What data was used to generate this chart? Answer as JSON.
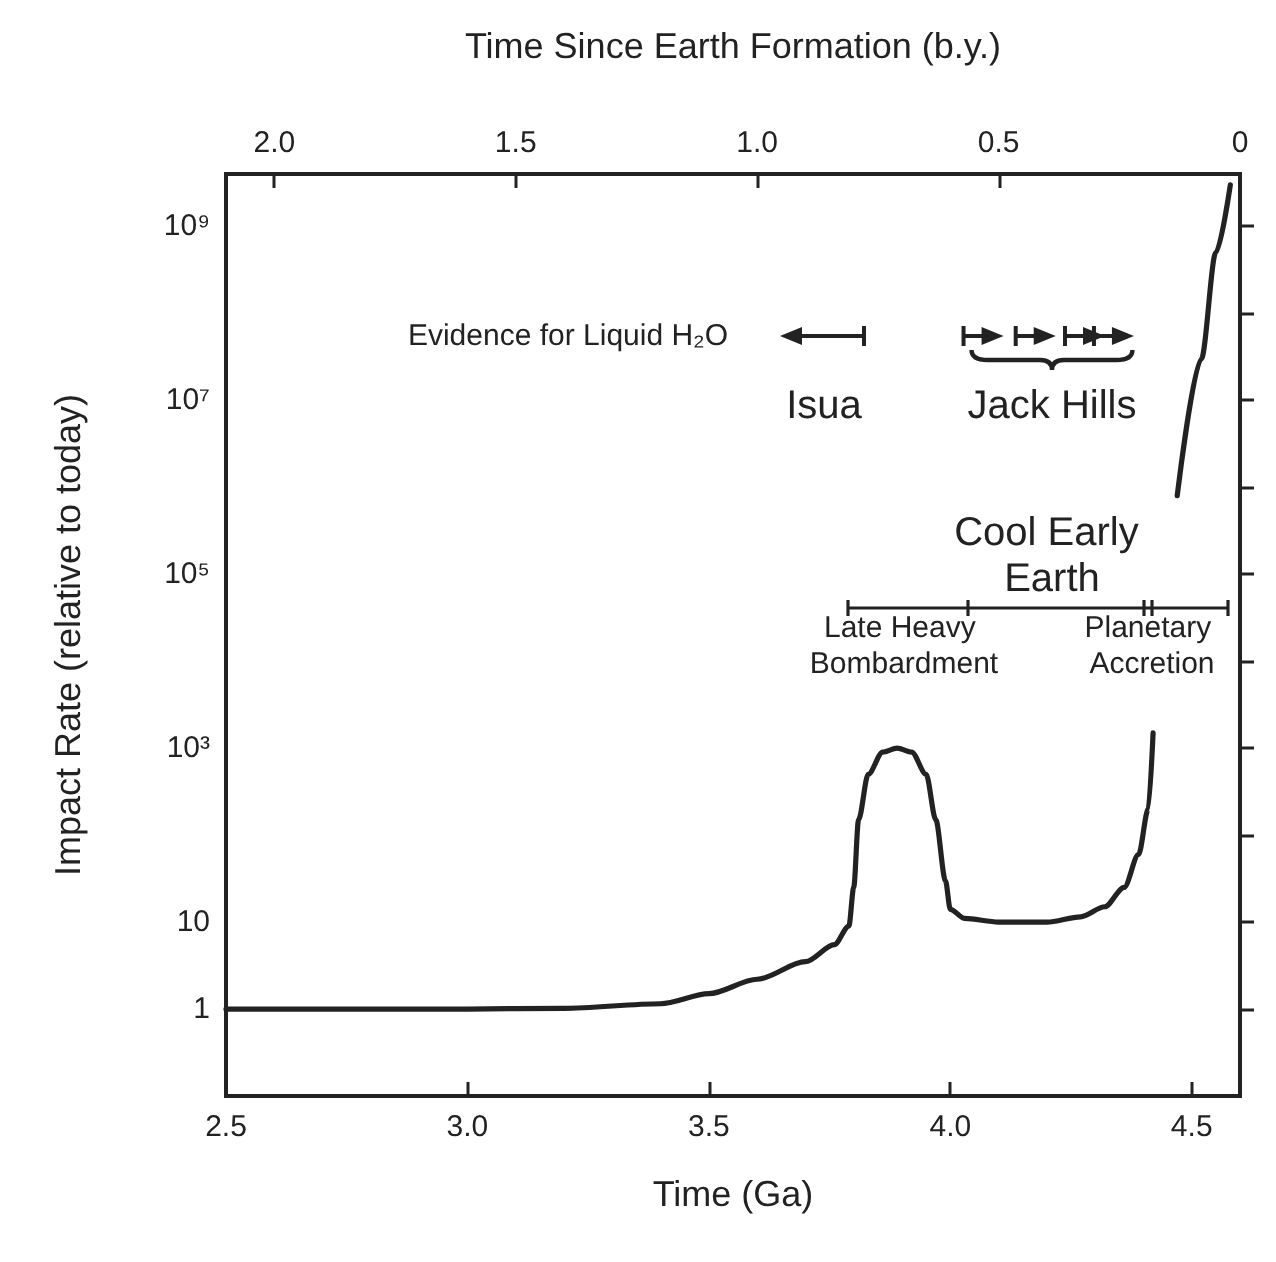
{
  "chart_data": {
    "type": "line",
    "xlabel": "Time (Ga)",
    "x2label": "Time Since Earth Formation (b.y.)",
    "ylabel": "Impact Rate (relative to today)",
    "series": [
      {
        "color": "#222222",
        "x": [
          2.5,
          3.0,
          3.2,
          3.4,
          3.5,
          3.6,
          3.7,
          3.76,
          3.79,
          3.8,
          3.81,
          3.83,
          3.86,
          3.89,
          3.92,
          3.95,
          3.97,
          3.99,
          4.0,
          4.03,
          4.1,
          4.2,
          4.27,
          4.32,
          4.36,
          4.39,
          4.41,
          4.42,
          4.44,
          4.47,
          4.52,
          4.55,
          4.58
        ],
        "values": [
          1,
          1,
          1.02,
          1.15,
          1.5,
          2.2,
          3.5,
          5.5,
          9,
          25,
          150,
          500,
          900,
          1000,
          900,
          500,
          150,
          30,
          14,
          11,
          10,
          10,
          11.5,
          15,
          25,
          60,
          200,
          1500,
          null,
          800000,
          30000000,
          500000000,
          3000000000
        ]
      }
    ],
    "log": "y",
    "xlim": [
      2.5,
      4.6
    ],
    "xticks": [
      {
        "value": 2.5,
        "label": "2.5"
      },
      {
        "value": 3,
        "label": "3.0"
      },
      {
        "value": 3.5,
        "label": "3.5"
      },
      {
        "value": 4,
        "label": "4.0"
      },
      {
        "value": 4.5,
        "label": "4.5"
      }
    ],
    "x2lim": [
      2.1,
      0
    ],
    "x2ticks": [
      {
        "value": 2,
        "label": "2.0"
      },
      {
        "value": 1.5,
        "label": "1.5"
      },
      {
        "value": 1,
        "label": "1.0"
      },
      {
        "value": 0.5,
        "label": "0.5"
      },
      0
    ],
    "ylim": [
      0.1,
      4000000000
    ],
    "yticks": [
      1,
      10,
      {
        "value": 100,
        "label": null
      },
      {
        "value": 1000,
        "label": "10³"
      },
      {
        "value": 10000,
        "label": null
      },
      {
        "value": 100000,
        "label": "10⁵"
      },
      {
        "value": 1000000,
        "label": null
      },
      {
        "value": 10000000,
        "label": "10⁷"
      },
      {
        "value": 100000000,
        "label": null
      },
      {
        "value": 1000000000,
        "label": "10⁹"
      }
    ],
    "grid": false,
    "marker": "none",
    "line_style": "solid",
    "annotations": [
      "Evidence for Liquid H₂O",
      "Isua",
      "Jack Hills",
      "Cool Early Earth",
      "Late Heavy Bombardment",
      "Planetary Accretion"
    ]
  }
}
